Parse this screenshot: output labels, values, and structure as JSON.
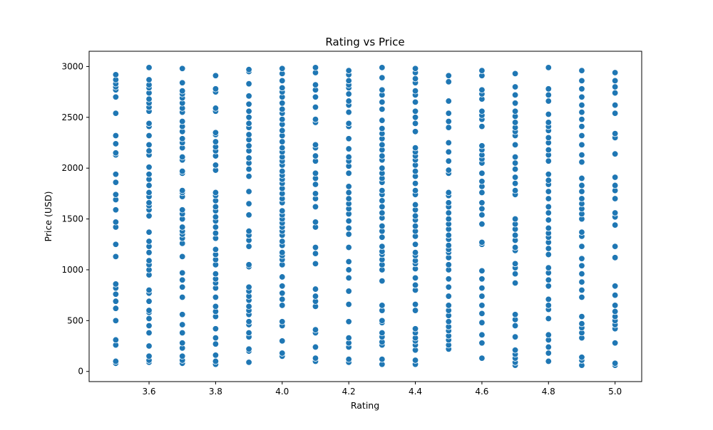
{
  "chart_data": {
    "type": "scatter",
    "title": "Rating vs Price",
    "xlabel": "Rating",
    "ylabel": "Price (USD)",
    "xlim": [
      3.42,
      5.08
    ],
    "ylim": [
      -100,
      3150
    ],
    "xticks": [
      3.6,
      3.8,
      4.0,
      4.2,
      4.4,
      4.6,
      4.8,
      5.0
    ],
    "xtick_labels": [
      "3.6",
      "3.8",
      "4.0",
      "4.2",
      "4.4",
      "4.6",
      "4.8",
      "5.0"
    ],
    "yticks": [
      0,
      500,
      1000,
      1500,
      2000,
      2500,
      3000
    ],
    "ytick_labels": [
      "0",
      "500",
      "1000",
      "1500",
      "2000",
      "2500",
      "3000"
    ],
    "grid": false,
    "legend": "none",
    "marker_color": "#1f77b4",
    "marker_edge_color": "#ffffff",
    "series": [
      {
        "x": 3.5,
        "y": [
          80,
          100,
          260,
          310,
          500,
          620,
          690,
          760,
          820,
          860,
          1130,
          1250,
          1420,
          1470,
          1590,
          1690,
          1740,
          1860,
          1940,
          2130,
          2150,
          2240,
          2320,
          2540,
          2700,
          2770,
          2800,
          2830,
          2870,
          2920
        ]
      },
      {
        "x": 3.6,
        "y": [
          90,
          110,
          150,
          250,
          380,
          450,
          520,
          580,
          600,
          690,
          770,
          800,
          950,
          1000,
          1050,
          1090,
          1170,
          1230,
          1280,
          1370,
          1530,
          1590,
          1630,
          1660,
          1720,
          1760,
          1830,
          1890,
          1940,
          2010,
          2130,
          2170,
          2230,
          2320,
          2410,
          2440,
          2560,
          2600,
          2640,
          2680,
          2740,
          2790,
          2820,
          2870,
          2990
        ]
      },
      {
        "x": 3.7,
        "y": [
          80,
          110,
          150,
          230,
          280,
          380,
          460,
          560,
          730,
          830,
          900,
          970,
          1130,
          1260,
          1310,
          1350,
          1380,
          1420,
          1500,
          1550,
          1590,
          1720,
          1760,
          1780,
          1950,
          1970,
          2080,
          2110,
          2200,
          2250,
          2290,
          2360,
          2410,
          2460,
          2550,
          2590,
          2640,
          2690,
          2730,
          2760,
          2840,
          2980
        ]
      },
      {
        "x": 3.8,
        "y": [
          70,
          100,
          160,
          270,
          330,
          420,
          540,
          590,
          640,
          730,
          820,
          870,
          910,
          960,
          1050,
          1100,
          1150,
          1200,
          1310,
          1360,
          1420,
          1480,
          1520,
          1580,
          1620,
          1680,
          1730,
          1760,
          1980,
          2030,
          2120,
          2170,
          2210,
          2260,
          2330,
          2350,
          2560,
          2590,
          2750,
          2780,
          2910
        ]
      },
      {
        "x": 3.9,
        "y": [
          90,
          200,
          220,
          340,
          380,
          460,
          490,
          560,
          600,
          640,
          700,
          740,
          790,
          830,
          1030,
          1050,
          1230,
          1290,
          1340,
          1380,
          1540,
          1650,
          1770,
          1920,
          1990,
          2050,
          2100,
          2170,
          2220,
          2280,
          2330,
          2400,
          2440,
          2500,
          2560,
          2630,
          2710,
          2830,
          2950,
          2970
        ]
      },
      {
        "x": 4.0,
        "y": [
          150,
          180,
          300,
          450,
          490,
          650,
          710,
          770,
          840,
          930,
          1050,
          1100,
          1140,
          1170,
          1240,
          1280,
          1340,
          1380,
          1420,
          1460,
          1500,
          1540,
          1580,
          1660,
          1700,
          1750,
          1800,
          1850,
          1890,
          1930,
          1970,
          2030,
          2070,
          2110,
          2160,
          2200,
          2260,
          2320,
          2370,
          2430,
          2480,
          2540,
          2580,
          2640,
          2700,
          2750,
          2790,
          2860,
          2930,
          2980
        ]
      },
      {
        "x": 4.1,
        "y": [
          100,
          130,
          240,
          380,
          410,
          640,
          690,
          740,
          810,
          1060,
          1160,
          1220,
          1420,
          1470,
          1620,
          1700,
          1750,
          1840,
          1900,
          1950,
          2070,
          2120,
          2200,
          2230,
          2450,
          2480,
          2600,
          2700,
          2770,
          2820,
          2940,
          2990
        ]
      },
      {
        "x": 4.2,
        "y": [
          90,
          120,
          240,
          280,
          330,
          490,
          660,
          790,
          920,
          1000,
          1080,
          1220,
          1350,
          1410,
          1480,
          1550,
          1600,
          1650,
          1700,
          1760,
          1820,
          1950,
          2020,
          2070,
          2110,
          2190,
          2290,
          2410,
          2440,
          2550,
          2620,
          2660,
          2730,
          2790,
          2820,
          2860,
          2920,
          2960
        ]
      },
      {
        "x": 4.3,
        "y": [
          70,
          120,
          260,
          290,
          340,
          380,
          480,
          500,
          600,
          650,
          890,
          1000,
          1050,
          1100,
          1150,
          1180,
          1230,
          1320,
          1380,
          1430,
          1510,
          1560,
          1620,
          1680,
          1740,
          1780,
          1860,
          1900,
          1950,
          2000,
          2080,
          2120,
          2180,
          2230,
          2290,
          2340,
          2390,
          2470,
          2580,
          2650,
          2720,
          2770,
          2890,
          2990
        ]
      },
      {
        "x": 4.4,
        "y": [
          70,
          110,
          210,
          260,
          300,
          330,
          380,
          420,
          600,
          660,
          800,
          850,
          920,
          1010,
          1060,
          1090,
          1140,
          1170,
          1250,
          1330,
          1380,
          1430,
          1490,
          1530,
          1590,
          1640,
          1740,
          1780,
          1850,
          1920,
          1970,
          2030,
          2080,
          2120,
          2160,
          2200,
          2360,
          2440,
          2500,
          2560,
          2650,
          2720,
          2760,
          2840,
          2880,
          2940,
          2980
        ]
      },
      {
        "x": 4.5,
        "y": [
          220,
          260,
          310,
          350,
          400,
          440,
          490,
          550,
          600,
          650,
          740,
          830,
          910,
          1000,
          1050,
          1120,
          1170,
          1200,
          1240,
          1300,
          1340,
          1400,
          1450,
          1500,
          1560,
          1620,
          1660,
          1730,
          1760,
          1950,
          1980,
          2070,
          2160,
          2250,
          2400,
          2460,
          2540,
          2660,
          2850,
          2910
        ]
      },
      {
        "x": 4.6,
        "y": [
          130,
          280,
          360,
          480,
          570,
          650,
          740,
          820,
          910,
          990,
          1250,
          1270,
          1450,
          1540,
          1600,
          1660,
          1760,
          1820,
          1870,
          1950,
          2050,
          2090,
          2130,
          2180,
          2220,
          2410,
          2480,
          2520,
          2560,
          2680,
          2730,
          2770,
          2910,
          2960
        ]
      },
      {
        "x": 4.7,
        "y": [
          60,
          90,
          130,
          170,
          210,
          340,
          450,
          510,
          560,
          870,
          960,
          1020,
          1060,
          1190,
          1220,
          1290,
          1340,
          1400,
          1450,
          1500,
          1740,
          1780,
          1850,
          1910,
          1990,
          2050,
          2110,
          2230,
          2320,
          2360,
          2400,
          2450,
          2510,
          2560,
          2640,
          2720,
          2800,
          2930
        ]
      },
      {
        "x": 4.8,
        "y": [
          100,
          180,
          240,
          310,
          360,
          520,
          610,
          650,
          710,
          840,
          900,
          970,
          1020,
          1150,
          1210,
          1270,
          1320,
          1360,
          1410,
          1490,
          1560,
          1620,
          1700,
          1770,
          1840,
          1880,
          1940,
          2070,
          2130,
          2180,
          2250,
          2300,
          2370,
          2410,
          2450,
          2530,
          2660,
          2720,
          2780,
          2990
        ]
      },
      {
        "x": 4.9,
        "y": [
          60,
          110,
          140,
          330,
          380,
          430,
          470,
          540,
          730,
          800,
          880,
          960,
          1040,
          1110,
          1230,
          1330,
          1370,
          1500,
          1550,
          1600,
          1650,
          1700,
          1770,
          1830,
          1900,
          2060,
          2130,
          2230,
          2320,
          2410,
          2480,
          2550,
          2620,
          2700,
          2780,
          2860,
          2960
        ]
      },
      {
        "x": 5.0,
        "y": [
          60,
          80,
          280,
          420,
          460,
          500,
          540,
          590,
          650,
          750,
          840,
          1120,
          1230,
          1440,
          1520,
          1560,
          1700,
          1780,
          1830,
          1910,
          2140,
          2300,
          2340,
          2540,
          2620,
          2740,
          2800,
          2860,
          2940
        ]
      }
    ]
  }
}
